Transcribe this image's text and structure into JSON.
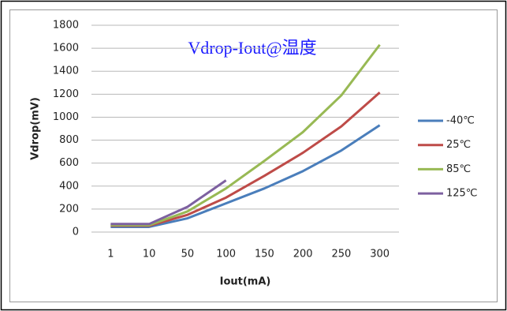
{
  "chart_data": {
    "type": "line",
    "title": "Vdrop-Iout@温度",
    "x_label": "Iout(mA)",
    "y_label": "Vdrop(mV)",
    "categories": [
      "1",
      "10",
      "50",
      "100",
      "150",
      "200",
      "250",
      "300"
    ],
    "series": [
      {
        "name": "-40℃",
        "color": "#4a7ebb",
        "values": [
          45,
          45,
          120,
          250,
          380,
          530,
          710,
          930
        ]
      },
      {
        "name": "25℃",
        "color": "#be4b48",
        "values": [
          55,
          55,
          150,
          300,
          490,
          690,
          920,
          1215
        ]
      },
      {
        "name": "85℃",
        "color": "#98b954",
        "values": [
          60,
          60,
          180,
          380,
          620,
          870,
          1190,
          1630
        ]
      },
      {
        "name": "125℃",
        "color": "#7d60a0",
        "values": [
          70,
          70,
          220,
          450,
          null,
          null,
          null,
          null
        ]
      }
    ],
    "ylim": [
      0,
      1800
    ],
    "yticks": [
      0,
      200,
      400,
      600,
      800,
      1000,
      1200,
      1400,
      1600,
      1800
    ],
    "grid": true,
    "legend": "right"
  }
}
